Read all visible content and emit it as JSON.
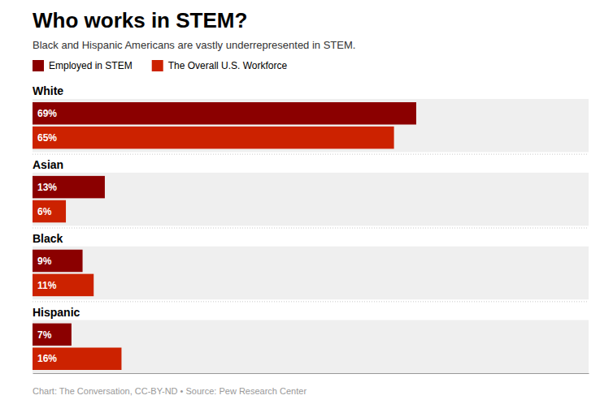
{
  "chart_data": {
    "type": "bar",
    "orientation": "horizontal",
    "title": "Who works in STEM?",
    "subtitle": "Black and Hispanic Americans are vastly underrepresented in STEM.",
    "footnote": "Chart: The Conversation, CC-BY-ND • Source: Pew Research Center",
    "categories": [
      "White",
      "Asian",
      "Black",
      "Hispanic"
    ],
    "series": [
      {
        "name": "Employed in STEM",
        "color": "#8B0000",
        "values": [
          69,
          13,
          9,
          7
        ],
        "value_labels": [
          "69%",
          "13%",
          "9%",
          "7%"
        ]
      },
      {
        "name": "The Overall U.S. Workforce",
        "color": "#CC2200",
        "values": [
          65,
          6,
          11,
          16
        ],
        "value_labels": [
          "65%",
          "6%",
          "11%",
          "16%"
        ]
      }
    ],
    "xlim": [
      0,
      100
    ],
    "data_labels": true,
    "tick_labels": false,
    "grid": false,
    "legend": "top-left"
  }
}
